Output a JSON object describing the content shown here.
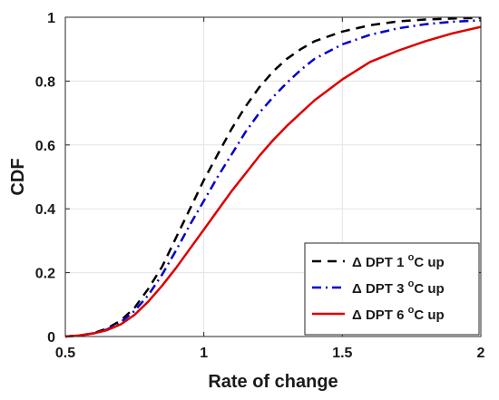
{
  "chart_data": {
    "type": "line",
    "xlabel": "Rate of change",
    "ylabel": "CDF",
    "xlim": [
      0.5,
      2
    ],
    "ylim": [
      0,
      1
    ],
    "x_ticks": [
      0.5,
      1,
      1.5,
      2
    ],
    "y_ticks": [
      0,
      0.2,
      0.4,
      0.6,
      0.8,
      1
    ],
    "x_tick_labels": [
      "0.5",
      "1",
      "1.5",
      "2"
    ],
    "y_tick_labels": [
      "0",
      "0.2",
      "0.4",
      "0.6",
      "0.8",
      "1"
    ],
    "grid": true,
    "legend_position": "bottom-right",
    "series": [
      {
        "name": "Δ DPT 1 °C up",
        "label_main": "Δ DPT 1 ",
        "label_sup": "o",
        "label_tail": "C up",
        "color": "#000000",
        "style": "dashed",
        "x": [
          0.5,
          0.55,
          0.6,
          0.65,
          0.7,
          0.75,
          0.8,
          0.85,
          0.9,
          0.95,
          1.0,
          1.05,
          1.1,
          1.15,
          1.2,
          1.25,
          1.3,
          1.35,
          1.4,
          1.5,
          1.6,
          1.7,
          1.8,
          1.9,
          2.0
        ],
        "y": [
          0.0,
          0.003,
          0.01,
          0.025,
          0.05,
          0.09,
          0.15,
          0.22,
          0.31,
          0.4,
          0.49,
          0.57,
          0.65,
          0.72,
          0.78,
          0.83,
          0.87,
          0.9,
          0.925,
          0.955,
          0.975,
          0.987,
          0.993,
          0.996,
          0.998
        ]
      },
      {
        "name": "Δ DPT 3 °C up",
        "label_main": "Δ DPT 3 ",
        "label_sup": "o",
        "label_tail": "C up",
        "color": "#0000cc",
        "style": "dashdot",
        "x": [
          0.5,
          0.55,
          0.6,
          0.65,
          0.7,
          0.75,
          0.8,
          0.85,
          0.9,
          0.95,
          1.0,
          1.05,
          1.1,
          1.15,
          1.2,
          1.25,
          1.3,
          1.35,
          1.4,
          1.5,
          1.6,
          1.7,
          1.8,
          1.9,
          2.0
        ],
        "y": [
          0.0,
          0.003,
          0.01,
          0.022,
          0.045,
          0.08,
          0.13,
          0.195,
          0.27,
          0.35,
          0.425,
          0.5,
          0.57,
          0.64,
          0.7,
          0.75,
          0.795,
          0.835,
          0.87,
          0.915,
          0.945,
          0.965,
          0.978,
          0.986,
          0.99
        ]
      },
      {
        "name": "Δ DPT 6 °C up",
        "label_main": "Δ DPT 6 ",
        "label_sup": "o",
        "label_tail": "C up",
        "color": "#dd0000",
        "style": "solid",
        "x": [
          0.5,
          0.55,
          0.6,
          0.65,
          0.7,
          0.75,
          0.8,
          0.85,
          0.9,
          0.95,
          1.0,
          1.05,
          1.1,
          1.15,
          1.2,
          1.25,
          1.3,
          1.35,
          1.4,
          1.5,
          1.6,
          1.7,
          1.8,
          1.9,
          2.0
        ],
        "y": [
          0.0,
          0.003,
          0.009,
          0.02,
          0.038,
          0.068,
          0.11,
          0.16,
          0.215,
          0.275,
          0.335,
          0.395,
          0.455,
          0.51,
          0.565,
          0.615,
          0.66,
          0.7,
          0.74,
          0.805,
          0.86,
          0.895,
          0.925,
          0.95,
          0.97
        ]
      }
    ]
  }
}
